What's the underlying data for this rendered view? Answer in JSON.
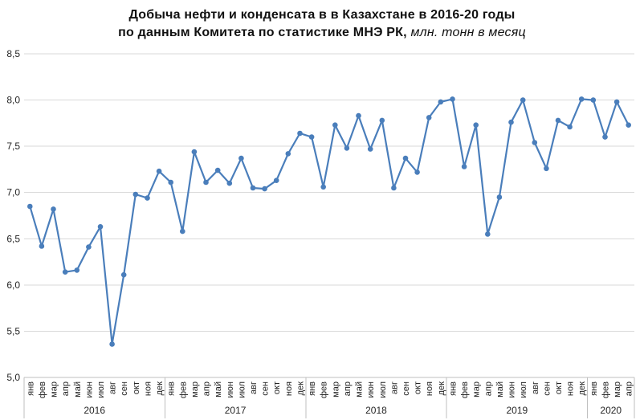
{
  "chart_data": {
    "type": "line",
    "title_line1": "Добыча нефти и конденсата в в Казахстане в 2016-20 годы",
    "title_line2_main": "по данным Комитета по статистике МНЭ РК,",
    "title_line2_units": " млн. тонн в месяц",
    "ylabel": "млн. тонн в месяц",
    "ylim": [
      5.0,
      8.5
    ],
    "y_tick_values": [
      8.5,
      8.0,
      7.5,
      7.0,
      6.5,
      6.0,
      5.5,
      5.0
    ],
    "y_tick_labels": [
      "8,5",
      "8,0",
      "7,5",
      "7,0",
      "6,5",
      "6,0",
      "5,5",
      "5,0"
    ],
    "month_names": [
      "янв",
      "фев",
      "мар",
      "апр",
      "май",
      "июн",
      "июл",
      "авг",
      "сен",
      "окт",
      "ноя",
      "дек"
    ],
    "years": [
      {
        "label": "2016",
        "months": 12
      },
      {
        "label": "2017",
        "months": 12
      },
      {
        "label": "2018",
        "months": 12
      },
      {
        "label": "2019",
        "months": 12
      },
      {
        "label": "2020",
        "months": 4
      }
    ],
    "values": [
      6.85,
      6.42,
      6.82,
      6.14,
      6.16,
      6.41,
      6.63,
      5.36,
      6.11,
      6.98,
      6.94,
      7.23,
      7.11,
      6.58,
      7.44,
      7.11,
      7.24,
      7.1,
      7.37,
      7.05,
      7.04,
      7.13,
      7.42,
      7.64,
      7.6,
      7.06,
      7.73,
      7.48,
      7.83,
      7.47,
      7.78,
      7.05,
      7.37,
      7.22,
      7.81,
      7.98,
      8.01,
      7.28,
      7.73,
      6.55,
      6.95,
      7.76,
      8.0,
      7.54,
      7.26,
      7.78,
      7.71,
      8.01,
      8.0,
      7.6,
      7.98,
      7.73
    ],
    "grid": true,
    "legend": "none",
    "colors": {
      "line": "#4A7EBB",
      "marker": "#4A7EBB",
      "grid": "#D9D9D9",
      "axis": "#BFBFBF",
      "text": "#262626",
      "title": "#111111"
    }
  }
}
